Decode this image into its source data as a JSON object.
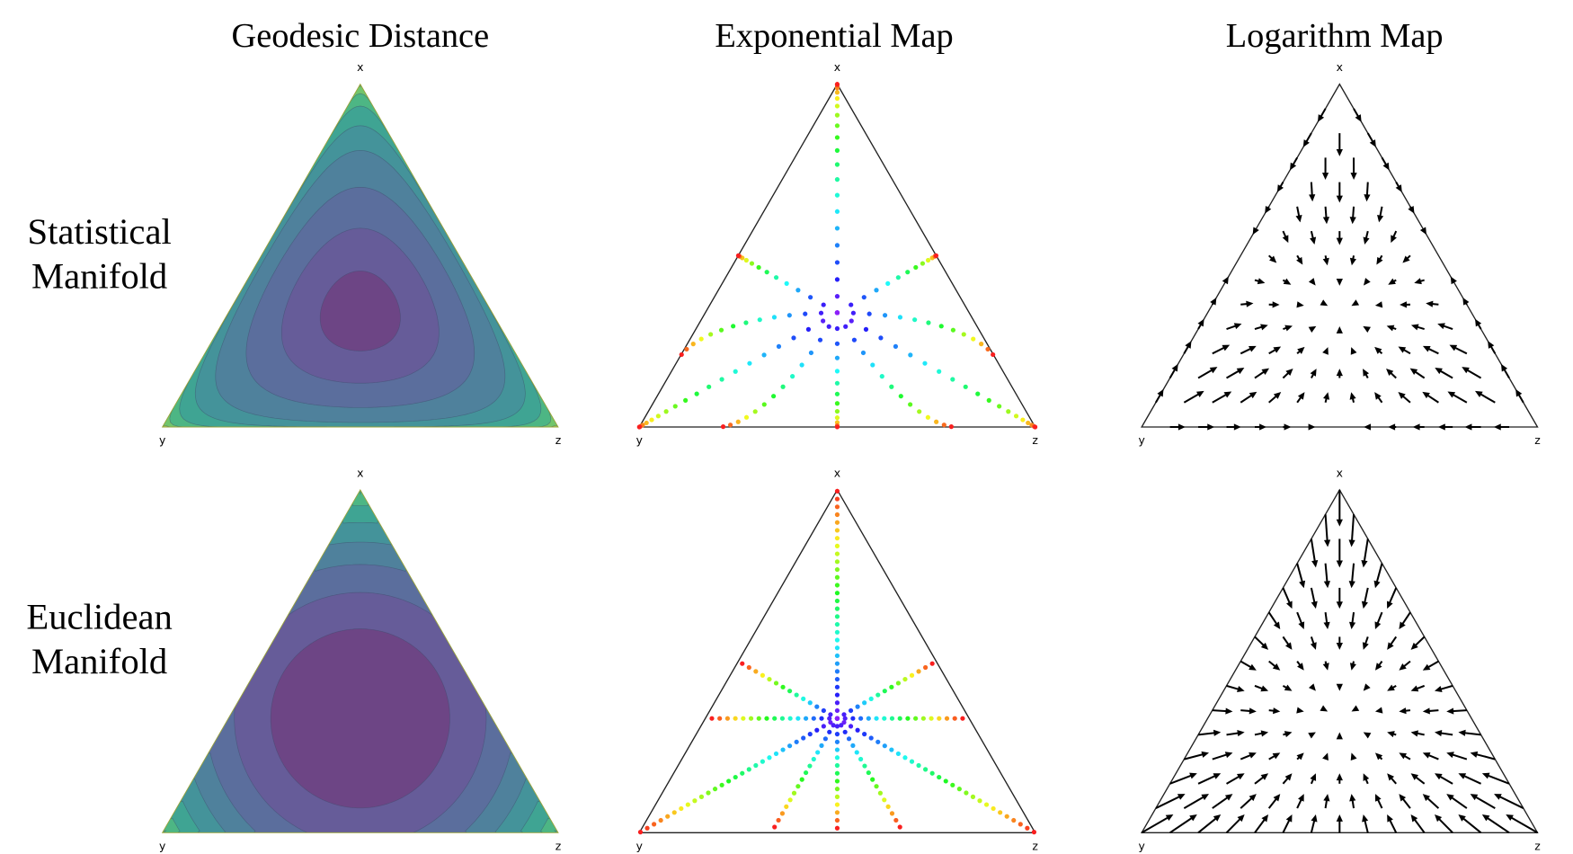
{
  "columns": [
    "Geodesic Distance",
    "Exponential Map",
    "Logarithm Map"
  ],
  "rows": [
    {
      "lines": [
        "Statistical",
        "Manifold"
      ]
    },
    {
      "lines": [
        "Euclidean",
        "Manifold"
      ]
    }
  ],
  "panels": [
    {
      "labels": [
        "x",
        "y",
        "z"
      ]
    },
    {
      "labels": [
        "x",
        "y",
        "z"
      ]
    },
    {
      "labels": [
        "x",
        "y",
        "z"
      ]
    },
    {
      "labels": [
        "x",
        "y",
        "z"
      ]
    },
    {
      "labels": [
        "x",
        "y",
        "z"
      ]
    },
    {
      "labels": [
        "x",
        "y",
        "z"
      ]
    }
  ]
}
